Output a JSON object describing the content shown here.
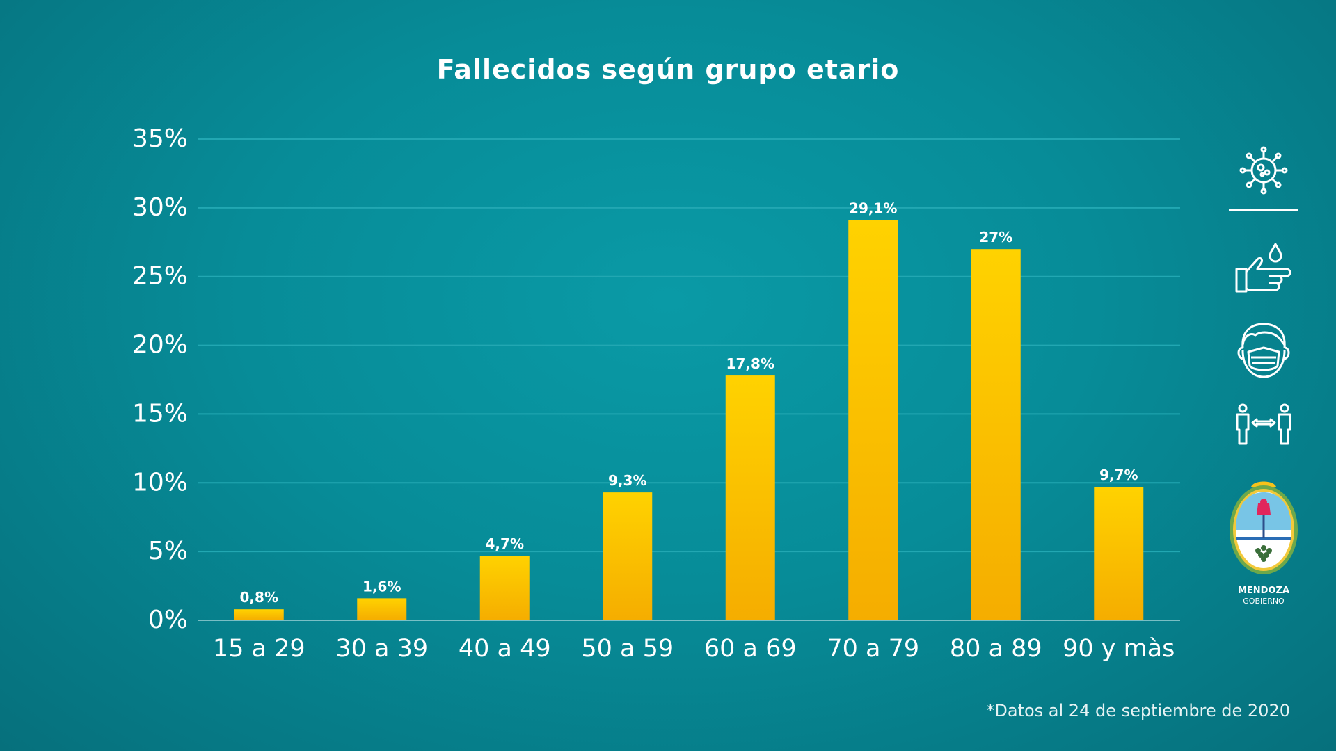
{
  "chart_data": {
    "type": "bar",
    "title": "Fallecidos según grupo etario",
    "categories": [
      "15 a 29",
      "30 a 39",
      "40 a 49",
      "50 a 59",
      "60 a 69",
      "70 a 79",
      "80 a 89",
      "90 y màs"
    ],
    "values": [
      0.8,
      1.6,
      4.7,
      9.3,
      17.8,
      29.1,
      27,
      9.7
    ],
    "data_labels": [
      "0,8%",
      "1,6%",
      "4,7%",
      "9,3%",
      "17,8%",
      "29,1%",
      "27%",
      "9,7%"
    ],
    "ylim": [
      0,
      35
    ],
    "yticks": [
      "0%",
      "5%",
      "10%",
      "15%",
      "20%",
      "25%",
      "30%",
      "35%"
    ],
    "grid": true,
    "bar_color": "#f8b900"
  },
  "footnote": "*Datos al 24 de septiembre de 2020",
  "sidebar": {
    "icons": [
      "virus-icon",
      "handwash-icon",
      "face-mask-icon",
      "social-distance-icon"
    ],
    "logo": {
      "line1": "MENDOZA",
      "line2": "GOBIERNO"
    }
  }
}
